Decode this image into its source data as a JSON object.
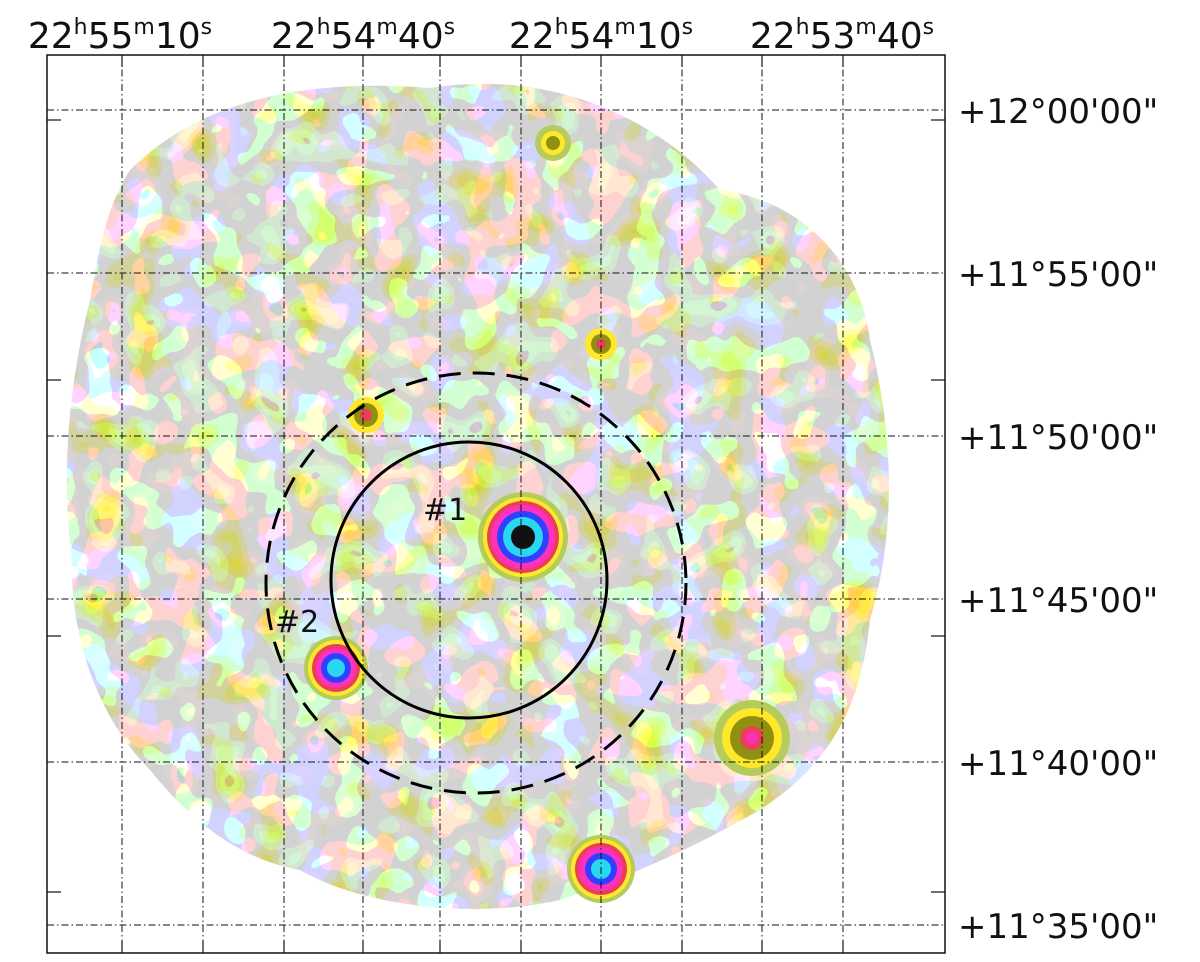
{
  "axes": {
    "ra_labels": [
      {
        "h": "22",
        "m": "55",
        "s": "10"
      },
      {
        "h": "22",
        "m": "54",
        "s": "40"
      },
      {
        "h": "22",
        "m": "54",
        "s": "10"
      },
      {
        "h": "22",
        "m": "53",
        "s": "40"
      }
    ],
    "dec_labels": [
      "+12°00'00\"",
      "+11°55'00\"",
      "+11°50'00\"",
      "+11°45'00\"",
      "+11°40'00\"",
      "+11°35'00\""
    ]
  },
  "regions": {
    "source_1": "#1",
    "source_2": "#2"
  },
  "colors": {
    "contour_level_1": "#a6a6a6",
    "contour_level_2": "#b5cc5a",
    "contour_level_3": "#ffe82a",
    "contour_level_4": "#8f8f10",
    "peak_red": "#e8405a",
    "peak_magenta": "#ff30c0",
    "peak_blue": "#3040ff",
    "peak_cyan": "#28d8f0",
    "peak_core": "#111111"
  }
}
